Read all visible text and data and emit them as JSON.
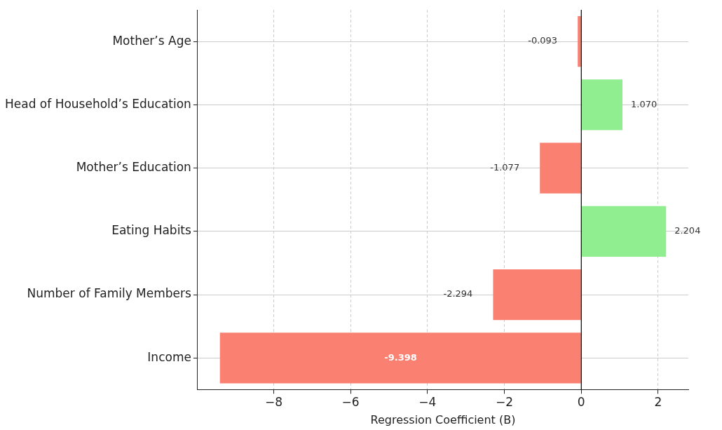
{
  "chart_data": {
    "type": "bar",
    "orientation": "horizontal",
    "xlabel": "Regression Coefficient (B)",
    "categories": [
      "Mother’s Age",
      "Head of Household’s Education",
      "Mother’s Education",
      "Eating Habits",
      "Number of Family Members",
      "Income"
    ],
    "values": [
      -0.093,
      1.07,
      -1.077,
      2.204,
      -2.294,
      -9.398
    ],
    "value_labels": [
      "-0.093",
      "1.070",
      "-1.077",
      "2.204",
      "-2.294",
      "-9.398"
    ],
    "colors": [
      "#fa8072",
      "#90ee90",
      "#fa8072",
      "#90ee90",
      "#fa8072",
      "#fa8072"
    ],
    "xlim": [
      -9.978,
      2.784
    ],
    "xticks": [
      {
        "value": -8,
        "label": "−8"
      },
      {
        "value": -6,
        "label": "−6"
      },
      {
        "value": -4,
        "label": "−4"
      },
      {
        "value": -2,
        "label": "−2"
      },
      0,
      2
    ],
    "ref_lines": [
      {
        "axis": "x",
        "value": 0,
        "color": "#000000"
      }
    ],
    "grid": true
  }
}
